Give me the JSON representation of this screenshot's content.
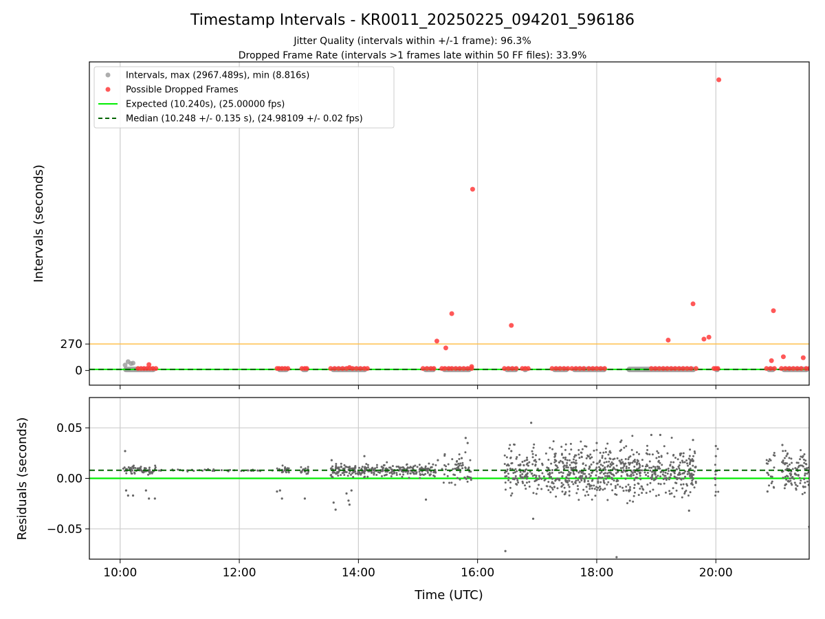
{
  "title": "Timestamp Intervals - KR0011_20250225_094201_596186",
  "subtitle_1": "Jitter Quality (intervals within +/-1 frame): 96.3%",
  "subtitle_2": "Dropped Frame Rate (intervals >1 frames late within 50 FF files): 33.9%",
  "colors": {
    "intervals": "#999999",
    "dropped": "#ff3b3b",
    "expected": "#00ee00",
    "median": "#006400",
    "threshold": "#ffc04d",
    "residual_points": "#666666",
    "grid": "#cccccc"
  },
  "chart_data": [
    {
      "type": "scatter",
      "name": "intervals",
      "xlabel": "",
      "ylabel": "Intervals (seconds)",
      "xlim": [
        "09:29",
        "21:34"
      ],
      "ylim": [
        -150,
        3150
      ],
      "yticks": [
        0,
        270
      ],
      "ytick_labels": [
        "0",
        "270"
      ],
      "xticks": [
        "10:00",
        "12:00",
        "14:00",
        "16:00",
        "18:00",
        "20:00"
      ],
      "grid": "vertical",
      "legend_position": "top-left",
      "legend": [
        {
          "label": "Intervals, max (2967.489s), min (8.816s)",
          "kind": "gray-point"
        },
        {
          "label": "Possible Dropped Frames",
          "kind": "red-point"
        },
        {
          "label": "Expected (10.240s), (25.00000 fps)",
          "kind": "green-line"
        },
        {
          "label": "Median (10.248 +/- 0.135 s), (24.98109 +/- 0.02 fps)",
          "kind": "darkgreen-dashed"
        }
      ],
      "expected_value": 10.24,
      "median_value": 10.248,
      "threshold_value": 270,
      "interval_runs": [
        {
          "start": "10:03",
          "end": "10:36"
        },
        {
          "start": "12:38",
          "end": "12:50"
        },
        {
          "start": "13:02",
          "end": "13:10"
        },
        {
          "start": "13:32",
          "end": "14:09"
        },
        {
          "start": "15:05",
          "end": "15:18"
        },
        {
          "start": "15:24",
          "end": "15:54"
        },
        {
          "start": "16:27",
          "end": "16:41"
        },
        {
          "start": "16:45",
          "end": "16:51"
        },
        {
          "start": "17:15",
          "end": "17:32"
        },
        {
          "start": "17:35",
          "end": "18:10"
        },
        {
          "start": "18:30",
          "end": "19:40"
        },
        {
          "start": "19:58",
          "end": "20:04"
        },
        {
          "start": "20:51",
          "end": "21:00"
        },
        {
          "start": "21:06",
          "end": "21:34"
        }
      ],
      "interval_points": [
        {
          "x": "10:05",
          "y": 55
        },
        {
          "x": "10:08",
          "y": 90
        },
        {
          "x": "10:11",
          "y": 70
        },
        {
          "x": "10:13",
          "y": 75
        }
      ],
      "dropped_points": [
        {
          "x": "10:18",
          "y": 20
        },
        {
          "x": "10:21",
          "y": 20
        },
        {
          "x": "10:24",
          "y": 20
        },
        {
          "x": "10:27",
          "y": 20
        },
        {
          "x": "10:29",
          "y": 60
        },
        {
          "x": "10:30",
          "y": 20
        },
        {
          "x": "10:33",
          "y": 20
        },
        {
          "x": "10:36",
          "y": 20
        },
        {
          "x": "12:38",
          "y": 20
        },
        {
          "x": "12:40",
          "y": 20
        },
        {
          "x": "12:43",
          "y": 20
        },
        {
          "x": "12:46",
          "y": 20
        },
        {
          "x": "12:49",
          "y": 20
        },
        {
          "x": "13:03",
          "y": 20
        },
        {
          "x": "13:06",
          "y": 20
        },
        {
          "x": "13:08",
          "y": 20
        },
        {
          "x": "13:32",
          "y": 20
        },
        {
          "x": "13:36",
          "y": 20
        },
        {
          "x": "13:40",
          "y": 20
        },
        {
          "x": "13:44",
          "y": 20
        },
        {
          "x": "13:48",
          "y": 20
        },
        {
          "x": "13:51",
          "y": 30
        },
        {
          "x": "13:54",
          "y": 20
        },
        {
          "x": "13:58",
          "y": 20
        },
        {
          "x": "14:02",
          "y": 20
        },
        {
          "x": "14:06",
          "y": 20
        },
        {
          "x": "14:09",
          "y": 20
        },
        {
          "x": "15:05",
          "y": 20
        },
        {
          "x": "15:09",
          "y": 20
        },
        {
          "x": "15:13",
          "y": 20
        },
        {
          "x": "15:16",
          "y": 20
        },
        {
          "x": "15:19",
          "y": 300
        },
        {
          "x": "15:24",
          "y": 20
        },
        {
          "x": "15:27",
          "y": 20
        },
        {
          "x": "15:28",
          "y": 230
        },
        {
          "x": "15:31",
          "y": 20
        },
        {
          "x": "15:34",
          "y": 20
        },
        {
          "x": "15:34",
          "y": 580
        },
        {
          "x": "15:38",
          "y": 20
        },
        {
          "x": "15:42",
          "y": 20
        },
        {
          "x": "15:46",
          "y": 20
        },
        {
          "x": "15:50",
          "y": 20
        },
        {
          "x": "15:54",
          "y": 20
        },
        {
          "x": "15:54",
          "y": 40
        },
        {
          "x": "15:55",
          "y": 1850
        },
        {
          "x": "16:27",
          "y": 20
        },
        {
          "x": "16:31",
          "y": 20
        },
        {
          "x": "16:35",
          "y": 20
        },
        {
          "x": "16:34",
          "y": 460
        },
        {
          "x": "16:39",
          "y": 20
        },
        {
          "x": "16:45",
          "y": 20
        },
        {
          "x": "16:48",
          "y": 20
        },
        {
          "x": "16:51",
          "y": 20
        },
        {
          "x": "17:15",
          "y": 20
        },
        {
          "x": "17:19",
          "y": 20
        },
        {
          "x": "17:23",
          "y": 20
        },
        {
          "x": "17:27",
          "y": 20
        },
        {
          "x": "17:31",
          "y": 20
        },
        {
          "x": "17:35",
          "y": 20
        },
        {
          "x": "17:39",
          "y": 20
        },
        {
          "x": "17:43",
          "y": 20
        },
        {
          "x": "17:47",
          "y": 20
        },
        {
          "x": "17:52",
          "y": 20
        },
        {
          "x": "17:56",
          "y": 20
        },
        {
          "x": "18:00",
          "y": 20
        },
        {
          "x": "18:04",
          "y": 20
        },
        {
          "x": "18:08",
          "y": 20
        },
        {
          "x": "18:55",
          "y": 20
        },
        {
          "x": "18:59",
          "y": 20
        },
        {
          "x": "19:03",
          "y": 20
        },
        {
          "x": "19:07",
          "y": 20
        },
        {
          "x": "19:11",
          "y": 20
        },
        {
          "x": "19:12",
          "y": 310
        },
        {
          "x": "19:15",
          "y": 20
        },
        {
          "x": "19:19",
          "y": 20
        },
        {
          "x": "19:23",
          "y": 20
        },
        {
          "x": "19:27",
          "y": 20
        },
        {
          "x": "19:31",
          "y": 20
        },
        {
          "x": "19:35",
          "y": 20
        },
        {
          "x": "19:37",
          "y": 680
        },
        {
          "x": "19:40",
          "y": 20
        },
        {
          "x": "19:48",
          "y": 320
        },
        {
          "x": "19:53",
          "y": 340
        },
        {
          "x": "19:58",
          "y": 20
        },
        {
          "x": "20:00",
          "y": 20
        },
        {
          "x": "20:02",
          "y": 20
        },
        {
          "x": "20:03",
          "y": 2967.489
        },
        {
          "x": "20:51",
          "y": 20
        },
        {
          "x": "20:55",
          "y": 20
        },
        {
          "x": "20:56",
          "y": 100
        },
        {
          "x": "20:59",
          "y": 20
        },
        {
          "x": "20:58",
          "y": 610
        },
        {
          "x": "21:06",
          "y": 20
        },
        {
          "x": "21:08",
          "y": 140
        },
        {
          "x": "21:10",
          "y": 20
        },
        {
          "x": "21:14",
          "y": 20
        },
        {
          "x": "21:18",
          "y": 20
        },
        {
          "x": "21:22",
          "y": 20
        },
        {
          "x": "21:26",
          "y": 20
        },
        {
          "x": "21:28",
          "y": 130
        },
        {
          "x": "21:31",
          "y": 20
        },
        {
          "x": "21:34",
          "y": 20
        }
      ]
    },
    {
      "type": "scatter",
      "name": "residuals",
      "xlabel": "Time (UTC)",
      "ylabel": "Residuals (seconds)",
      "xlim": [
        "09:29",
        "21:34"
      ],
      "ylim": [
        -0.08,
        0.08
      ],
      "yticks": [
        0.05,
        0.0,
        -0.05
      ],
      "ytick_labels": [
        "0.05",
        "0.00",
        "−0.05"
      ],
      "xticks": [
        "10:00",
        "12:00",
        "14:00",
        "16:00",
        "18:00",
        "20:00"
      ],
      "xtick_labels": [
        "10:00",
        "12:00",
        "14:00",
        "16:00",
        "18:00",
        "20:00"
      ],
      "grid": "both",
      "expected_value": 0.0,
      "median_value": 0.008,
      "clusters": [
        {
          "start": "10:03",
          "end": "10:36",
          "center": 0.008,
          "spread": 0.002,
          "n": 70
        },
        {
          "start": "10:36",
          "end": "12:38",
          "center": 0.008,
          "spread": 0.0005,
          "n": 40
        },
        {
          "start": "12:38",
          "end": "12:50",
          "center": 0.008,
          "spread": 0.002,
          "n": 25
        },
        {
          "start": "13:02",
          "end": "13:10",
          "center": 0.008,
          "spread": 0.002,
          "n": 18
        },
        {
          "start": "13:32",
          "end": "14:09",
          "center": 0.008,
          "spread": 0.003,
          "n": 110
        },
        {
          "start": "14:09",
          "end": "15:05",
          "center": 0.008,
          "spread": 0.003,
          "n": 150
        },
        {
          "start": "15:05",
          "end": "15:18",
          "center": 0.008,
          "spread": 0.003,
          "n": 40
        },
        {
          "start": "15:24",
          "end": "15:54",
          "center": 0.007,
          "spread": 0.008,
          "n": 60
        },
        {
          "start": "16:27",
          "end": "16:51",
          "center": 0.006,
          "spread": 0.011,
          "n": 90
        },
        {
          "start": "16:51",
          "end": "17:15",
          "center": 0.007,
          "spread": 0.012,
          "n": 70
        },
        {
          "start": "17:15",
          "end": "18:10",
          "center": 0.007,
          "spread": 0.012,
          "n": 260
        },
        {
          "start": "18:10",
          "end": "19:40",
          "center": 0.007,
          "spread": 0.012,
          "n": 380
        },
        {
          "start": "19:58",
          "end": "20:04",
          "center": 0.005,
          "spread": 0.01,
          "n": 12
        },
        {
          "start": "20:51",
          "end": "21:00",
          "center": 0.008,
          "spread": 0.01,
          "n": 20
        },
        {
          "start": "21:06",
          "end": "21:34",
          "center": 0.008,
          "spread": 0.01,
          "n": 110
        }
      ],
      "outliers": [
        {
          "x": "10:05",
          "y": 0.027
        },
        {
          "x": "10:06",
          "y": -0.012
        },
        {
          "x": "10:08",
          "y": -0.017
        },
        {
          "x": "10:13",
          "y": -0.017
        },
        {
          "x": "10:26",
          "y": -0.012
        },
        {
          "x": "10:29",
          "y": -0.02
        },
        {
          "x": "10:35",
          "y": -0.02
        },
        {
          "x": "12:38",
          "y": -0.013
        },
        {
          "x": "12:41",
          "y": -0.012
        },
        {
          "x": "12:43",
          "y": -0.02
        },
        {
          "x": "13:06",
          "y": -0.02
        },
        {
          "x": "13:35",
          "y": -0.024
        },
        {
          "x": "13:37",
          "y": -0.031
        },
        {
          "x": "13:33",
          "y": 0.018
        },
        {
          "x": "13:48",
          "y": -0.015
        },
        {
          "x": "13:50",
          "y": -0.022
        },
        {
          "x": "13:51",
          "y": -0.026
        },
        {
          "x": "13:53",
          "y": -0.012
        },
        {
          "x": "14:06",
          "y": 0.022
        },
        {
          "x": "15:08",
          "y": -0.021
        },
        {
          "x": "15:20",
          "y": 0.018
        },
        {
          "x": "15:44",
          "y": 0.02
        },
        {
          "x": "15:48",
          "y": 0.04
        },
        {
          "x": "15:50",
          "y": 0.035
        },
        {
          "x": "16:28",
          "y": -0.072
        },
        {
          "x": "16:34",
          "y": 0.027
        },
        {
          "x": "16:54",
          "y": 0.055
        },
        {
          "x": "16:56",
          "y": -0.04
        },
        {
          "x": "18:00",
          "y": 0.035
        },
        {
          "x": "18:20",
          "y": -0.078
        },
        {
          "x": "18:24",
          "y": 0.036
        },
        {
          "x": "18:55",
          "y": 0.043
        },
        {
          "x": "19:04",
          "y": 0.043
        },
        {
          "x": "19:33",
          "y": -0.032
        },
        {
          "x": "19:37",
          "y": 0.038
        },
        {
          "x": "20:00",
          "y": 0.032
        },
        {
          "x": "20:00",
          "y": 0.022
        },
        {
          "x": "20:52",
          "y": -0.013
        },
        {
          "x": "21:07",
          "y": 0.033
        },
        {
          "x": "21:34",
          "y": -0.048
        }
      ]
    }
  ]
}
